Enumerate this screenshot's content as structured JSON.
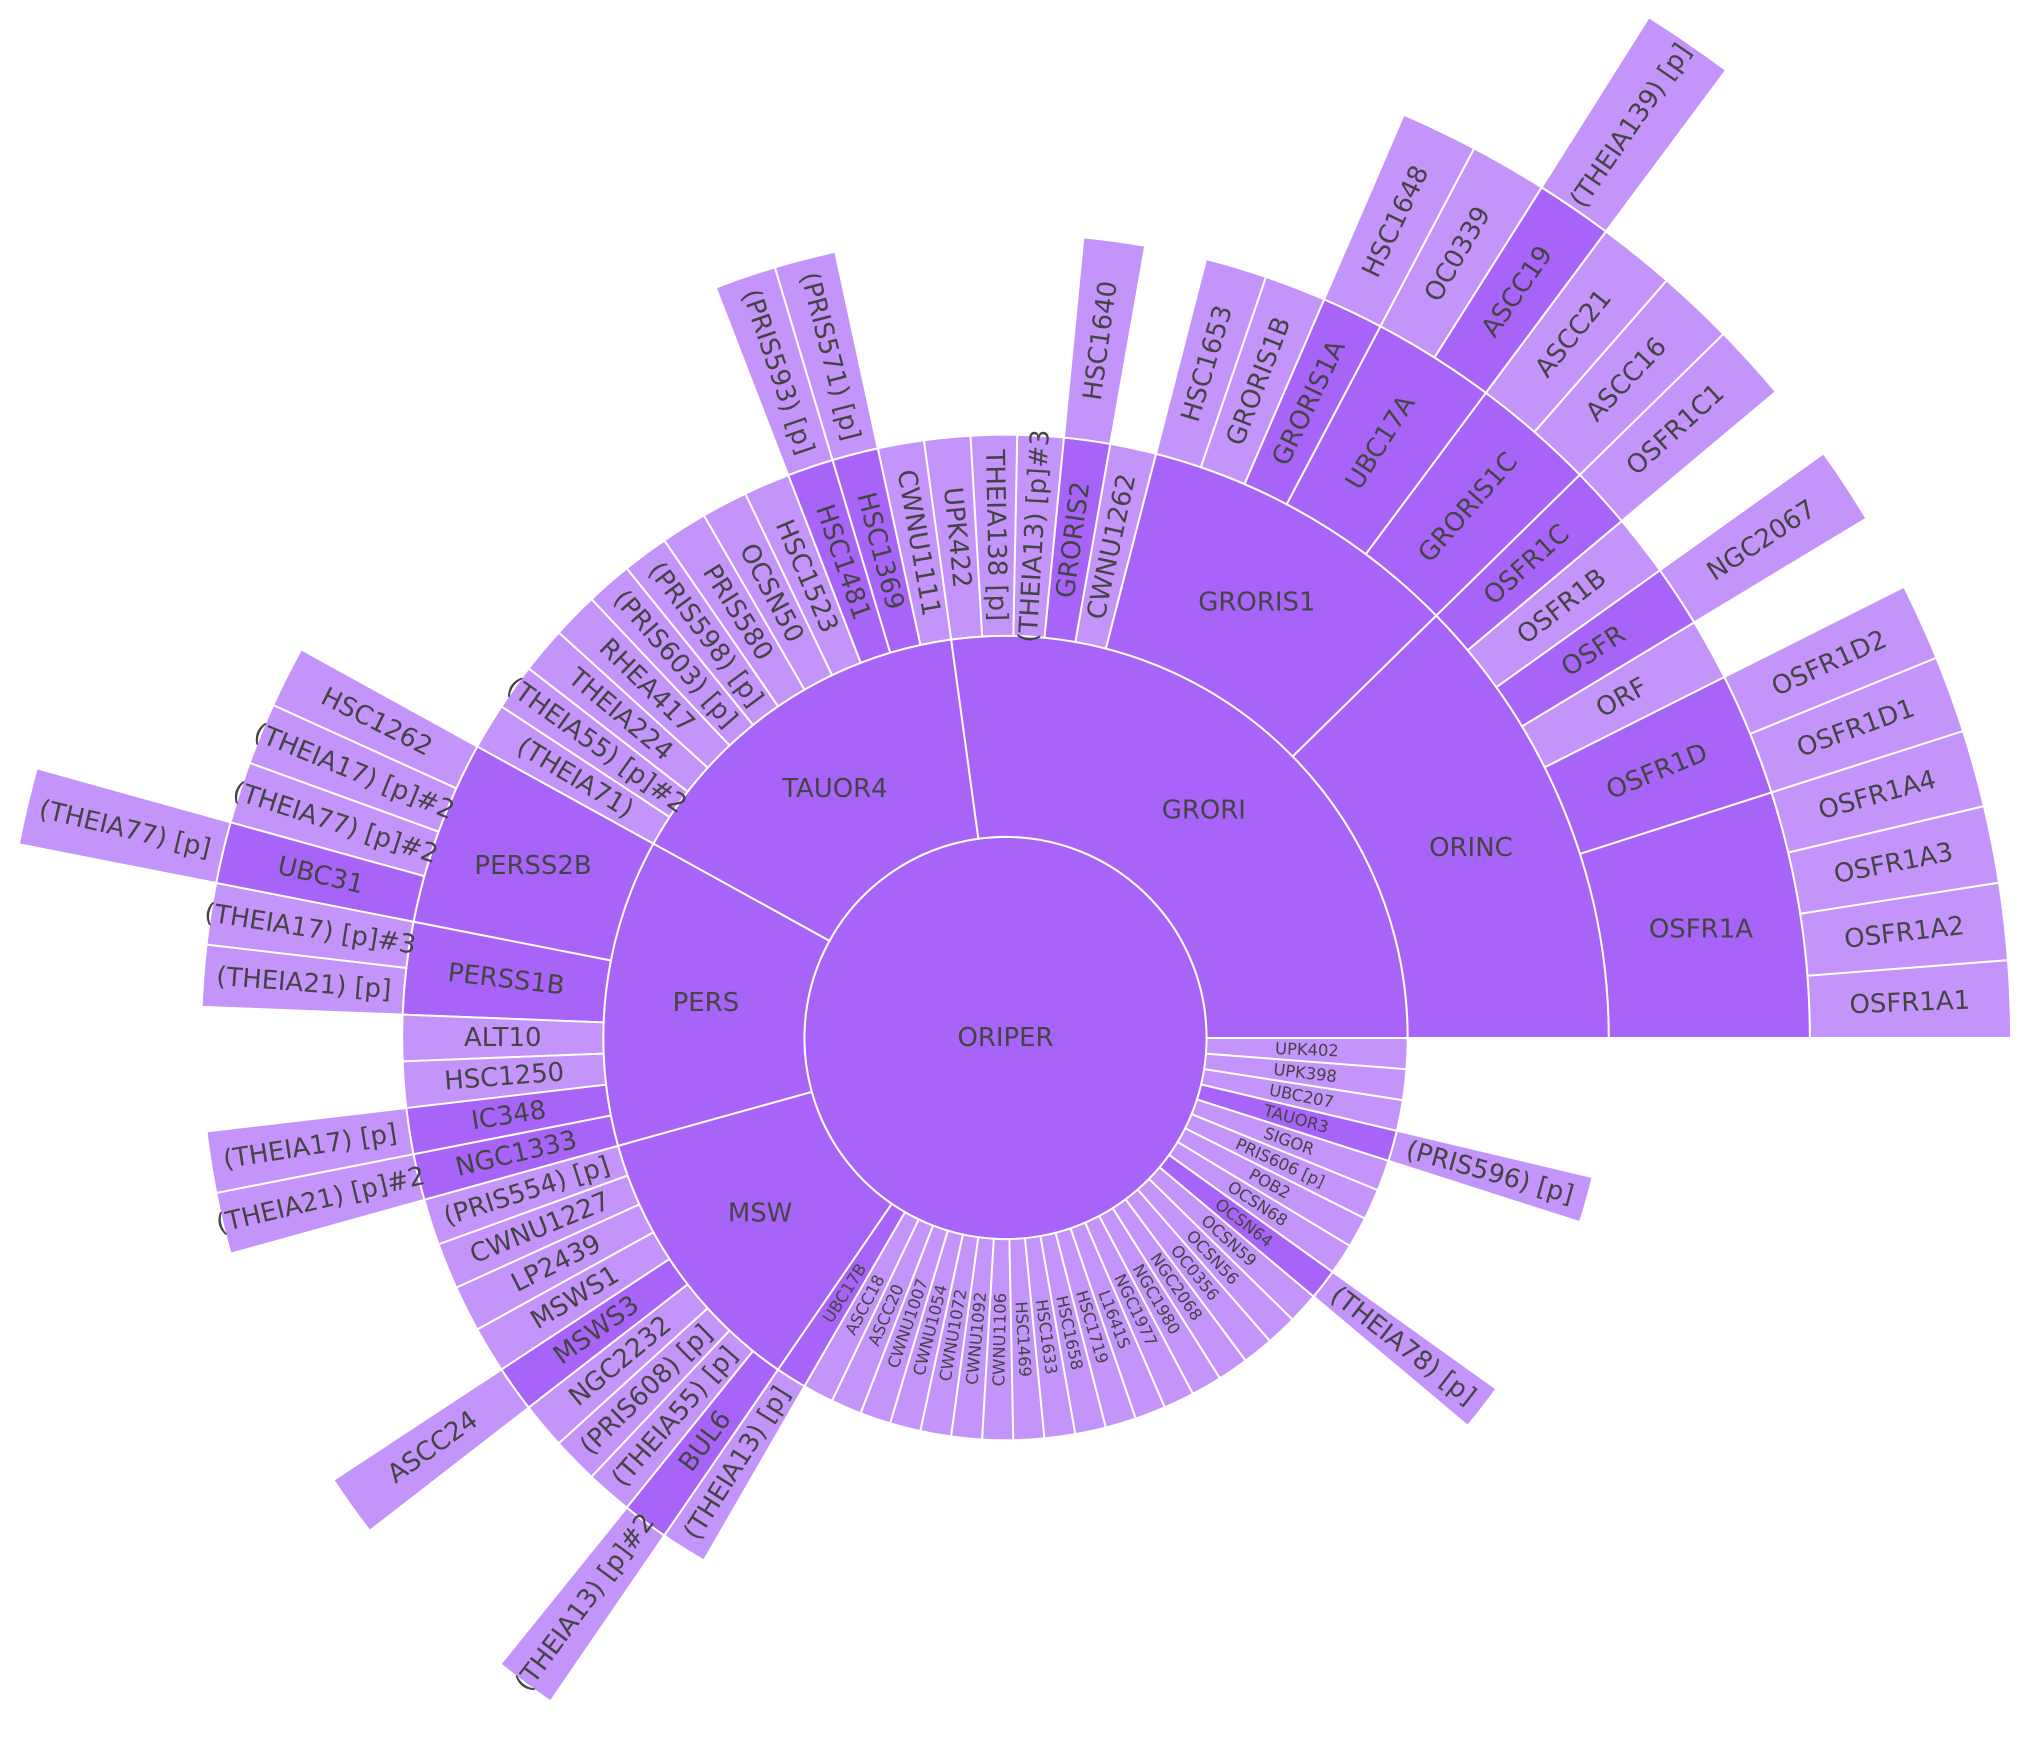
{
  "chart_data": {
    "type": "sunburst",
    "parent_color": "#a864f8",
    "leaf_color": "#c394fa",
    "root": {
      "label": "ORIPER",
      "children": [
        {
          "label": "GRORI",
          "children": [
            {
              "label": "ORINC",
              "children": [
                {
                  "label": "OSFR1A",
                  "children": [
                    {
                      "label": "OSFR1A1",
                      "value": 1
                    },
                    {
                      "label": "OSFR1A2",
                      "value": 1
                    },
                    {
                      "label": "OSFR1A3",
                      "value": 1
                    },
                    {
                      "label": "OSFR1A4",
                      "value": 1
                    }
                  ]
                },
                {
                  "label": "OSFR1D",
                  "children": [
                    {
                      "label": "OSFR1D1",
                      "value": 1
                    },
                    {
                      "label": "OSFR1D2",
                      "value": 1
                    }
                  ]
                },
                {
                  "label": "ORF",
                  "value": 1
                },
                {
                  "label": "OSFR",
                  "children": [
                    {
                      "label": "NGC2067",
                      "value": 1
                    }
                  ]
                },
                {
                  "label": "OSFR1B",
                  "value": 1
                },
                {
                  "label": "OSFR1C",
                  "children": [
                    {
                      "label": "OSFR1C1",
                      "value": 1
                    }
                  ]
                }
              ]
            },
            {
              "label": "GRORIS1",
              "children": [
                {
                  "label": "GRORIS1C",
                  "children": [
                    {
                      "label": "ASCC16",
                      "value": 1
                    },
                    {
                      "label": "ASCC21",
                      "value": 1
                    }
                  ]
                },
                {
                  "label": "UBC17A",
                  "children": [
                    {
                      "label": "ASCC19",
                      "children": [
                        {
                          "label": "(THEIA139) [p]",
                          "value": 1
                        }
                      ]
                    },
                    {
                      "label": "OC0339",
                      "value": 1
                    }
                  ]
                },
                {
                  "label": "GRORIS1A",
                  "children": [
                    {
                      "label": "HSC1648",
                      "value": 1
                    }
                  ]
                },
                {
                  "label": "GRORIS1B",
                  "value": 1
                },
                {
                  "label": "HSC1653",
                  "value": 1
                }
              ]
            },
            {
              "label": "CWNU1262",
              "value": 1
            },
            {
              "label": "GRORIS2",
              "children": [
                {
                  "label": "HSC1640",
                  "value": 1
                }
              ]
            },
            {
              "label": "(THEIA13) [p]#3",
              "value": 1
            },
            {
              "label": "THEIA138 [p]",
              "value": 1
            },
            {
              "label": "UPK422",
              "value": 1
            }
          ]
        },
        {
          "label": "TAUOR4",
          "children": [
            {
              "label": "CWNU1111",
              "value": 1
            },
            {
              "label": "HSC1369",
              "children": [
                {
                  "label": "(PRIS571) [p]",
                  "value": 1
                }
              ]
            },
            {
              "label": "HSC1481",
              "children": [
                {
                  "label": "(PRIS593) [p]",
                  "value": 1
                }
              ]
            },
            {
              "label": "HSC1523",
              "value": 1
            },
            {
              "label": "OCSN50",
              "value": 1
            },
            {
              "label": "PRIS580",
              "value": 1
            },
            {
              "label": "(PRIS598) [p]",
              "value": 1
            },
            {
              "label": "(PRIS603) [p]",
              "value": 1
            },
            {
              "label": "RHEA417",
              "value": 1
            },
            {
              "label": "THEIA224",
              "value": 1
            },
            {
              "label": "(THEIA55) [p]#2",
              "value": 1
            },
            {
              "label": "(THEIA71)",
              "value": 1
            }
          ]
        },
        {
          "label": "PERS",
          "children": [
            {
              "label": "PERSS2B",
              "children": [
                {
                  "label": "HSC1262",
                  "value": 1
                },
                {
                  "label": "(THEIA17) [p]#2",
                  "value": 1
                },
                {
                  "label": "(THEIA77) [p]#2",
                  "value": 1
                },
                {
                  "label": "UBC31",
                  "children": [
                    {
                      "label": "(THEIA77) [p]",
                      "value": 1
                    }
                  ]
                }
              ]
            },
            {
              "label": "PERSS1B",
              "children": [
                {
                  "label": "(THEIA17) [p]#3",
                  "value": 1
                },
                {
                  "label": "(THEIA21) [p]",
                  "value": 1
                }
              ]
            },
            {
              "label": "ALT10",
              "value": 1
            },
            {
              "label": "HSC1250",
              "value": 1
            },
            {
              "label": "IC348",
              "children": [
                {
                  "label": "(THEIA17) [p]",
                  "value": 1
                }
              ]
            },
            {
              "label": "NGC1333",
              "children": [
                {
                  "label": "(THEIA21) [p]#2",
                  "value": 1
                }
              ]
            }
          ]
        },
        {
          "label": "MSW",
          "children": [
            {
              "label": "(PRIS554) [p]",
              "value": 1
            },
            {
              "label": "CWNU1227",
              "value": 1
            },
            {
              "label": "LP2439",
              "value": 1
            },
            {
              "label": "MSWS1",
              "value": 1
            },
            {
              "label": "MSWS3",
              "children": [
                {
                  "label": "ASCC24",
                  "value": 1
                }
              ]
            },
            {
              "label": "NGC2232",
              "value": 1
            },
            {
              "label": "(PRIS608) [p]",
              "value": 1
            },
            {
              "label": "(THEIA55) [p]",
              "value": 1
            },
            {
              "label": "BUL6",
              "children": [
                {
                  "label": "(THEIA13) [p]#2",
                  "value": 1
                }
              ]
            }
          ]
        },
        {
          "label": "UBC17B",
          "children": [
            {
              "label": "(THEIA13) [p]",
              "value": 1
            }
          ]
        },
        {
          "label": "ASCC18",
          "value": 1
        },
        {
          "label": "ASCC20",
          "value": 1
        },
        {
          "label": "CWNU1007",
          "value": 1
        },
        {
          "label": "CWNU1054",
          "value": 1
        },
        {
          "label": "CWNU1072",
          "value": 1
        },
        {
          "label": "CWNU1092",
          "value": 1
        },
        {
          "label": "CWNU1106",
          "value": 1
        },
        {
          "label": "HSC1469",
          "value": 1
        },
        {
          "label": "HSC1633",
          "value": 1
        },
        {
          "label": "HSC1658",
          "value": 1
        },
        {
          "label": "HSC1719",
          "value": 1
        },
        {
          "label": "L1641S",
          "value": 1
        },
        {
          "label": "NGC1977",
          "value": 1
        },
        {
          "label": "NGC1980",
          "value": 1
        },
        {
          "label": "NGC2068",
          "value": 1
        },
        {
          "label": "OC0356",
          "value": 1
        },
        {
          "label": "OCSN56",
          "value": 1
        },
        {
          "label": "OCSN59",
          "value": 1
        },
        {
          "label": "OCSN64",
          "children": [
            {
              "label": "(THEIA78) [p]",
              "value": 1
            }
          ]
        },
        {
          "label": "OCSN68",
          "value": 1
        },
        {
          "label": "POB2",
          "value": 1
        },
        {
          "label": "PRIS606 [p]",
          "value": 1
        },
        {
          "label": "SIGOR",
          "value": 1
        },
        {
          "label": "TAUOR3",
          "children": [
            {
              "label": "(PRIS596) [p]",
              "value": 1
            }
          ]
        },
        {
          "label": "UBC207",
          "value": 1
        },
        {
          "label": "UPK398",
          "value": 1
        },
        {
          "label": "UPK402",
          "value": 1
        }
      ]
    }
  }
}
